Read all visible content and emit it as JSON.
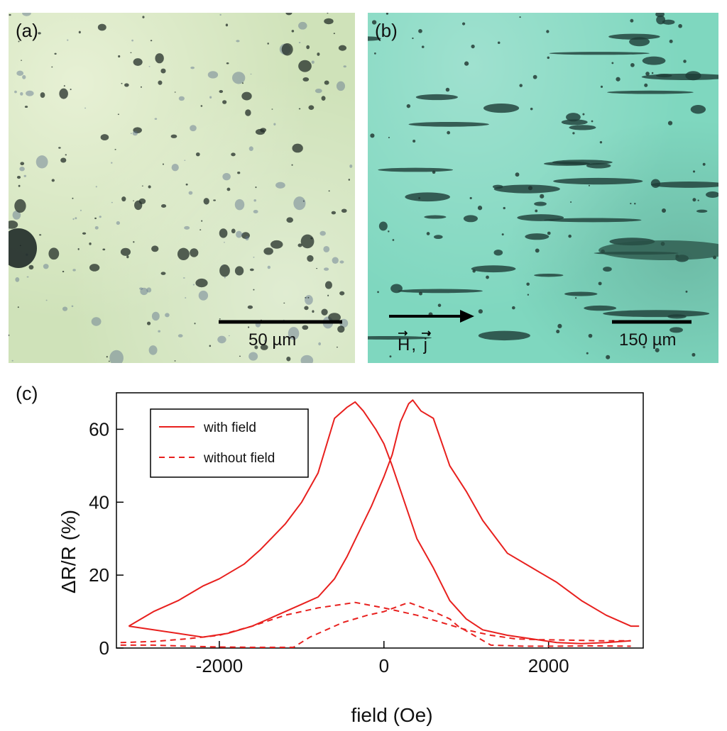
{
  "panel_a": {
    "label": "(a)",
    "scale_bar_label": "50 µm"
  },
  "panel_b": {
    "label": "(b)",
    "scale_bar_label": "150 µm",
    "arrow_label": "H, j"
  },
  "colors": {
    "series": "#e8201e",
    "panel_a_background": "#cfe2b9",
    "panel_b_background": "#7fd7bf"
  },
  "chart_data": {
    "type": "line",
    "panel_label": "(c)",
    "xlabel": "field (Oe)",
    "ylabel": "ΔR/R (%)",
    "xlim": [
      -3250,
      3150
    ],
    "ylim": [
      0,
      70
    ],
    "xticks": [
      -2000,
      0,
      2000
    ],
    "yticks": [
      0,
      20,
      40,
      60
    ],
    "legend": {
      "position": "top-left",
      "entries": [
        "with field",
        "without field"
      ]
    },
    "series": [
      {
        "name": "with field",
        "style": "solid",
        "segments": [
          {
            "x": [
              -3100,
              -2800,
              -2500,
              -2200,
              -2000,
              -1700,
              -1500,
              -1200,
              -1000,
              -800,
              -600,
              -450,
              -350,
              -250,
              -100,
              0,
              100,
              250,
              400,
              600,
              800,
              1000,
              1200,
              1500,
              1800,
              2100,
              2400,
              2700,
              3000
            ],
            "y": [
              6,
              10,
              13,
              17,
              19,
              23,
              27,
              34,
              40,
              48,
              63,
              66,
              67.5,
              65,
              60,
              56,
              50,
              40,
              30,
              22,
              13,
              8,
              5,
              3.5,
              2.5,
              1.5,
              1.2,
              1.5,
              2
            ]
          },
          {
            "x": [
              -3100,
              -2800,
              -2500,
              -2200,
              -1900,
              -1600,
              -1300,
              -1000,
              -800,
              -600,
              -450,
              -300,
              -150,
              0,
              100,
              200,
              300,
              350,
              450,
              600,
              800,
              1000,
              1200,
              1500,
              1800,
              2100,
              2400,
              2700,
              3000,
              3100
            ],
            "y": [
              6,
              5,
              4,
              3,
              4,
              6,
              9,
              12,
              14,
              19,
              25,
              32,
              39,
              47,
              53,
              62,
              67,
              68,
              65,
              63,
              50,
              43,
              35,
              26,
              22,
              18,
              13,
              9,
              6,
              6
            ]
          }
        ]
      },
      {
        "name": "without field",
        "style": "dashed",
        "segments": [
          {
            "x": [
              -3200,
              -2800,
              -2400,
              -2000,
              -1600,
              -1200,
              -800,
              -350,
              0,
              400,
              700,
              1000,
              1300,
              1600,
              1900,
              2200,
              2600,
              3000
            ],
            "y": [
              1.5,
              1.8,
              2.5,
              3.5,
              6,
              9,
              11,
              12.5,
              11,
              9,
              7,
              5,
              3.5,
              2.5,
              2.3,
              2.2,
              2,
              2
            ]
          },
          {
            "x": [
              -3200,
              -2800,
              -2400,
              -2000,
              -1600,
              -1100,
              -900,
              -500,
              -200,
              0,
              300,
              600,
              800,
              900,
              1300,
              1700,
              2100,
              2500,
              3000
            ],
            "y": [
              0.8,
              0.8,
              0.5,
              0.3,
              0.2,
              0.2,
              3,
              7,
              9,
              10,
              12.5,
              10,
              8,
              6,
              0.8,
              0.5,
              0.5,
              0.6,
              0.5
            ]
          }
        ]
      }
    ]
  }
}
